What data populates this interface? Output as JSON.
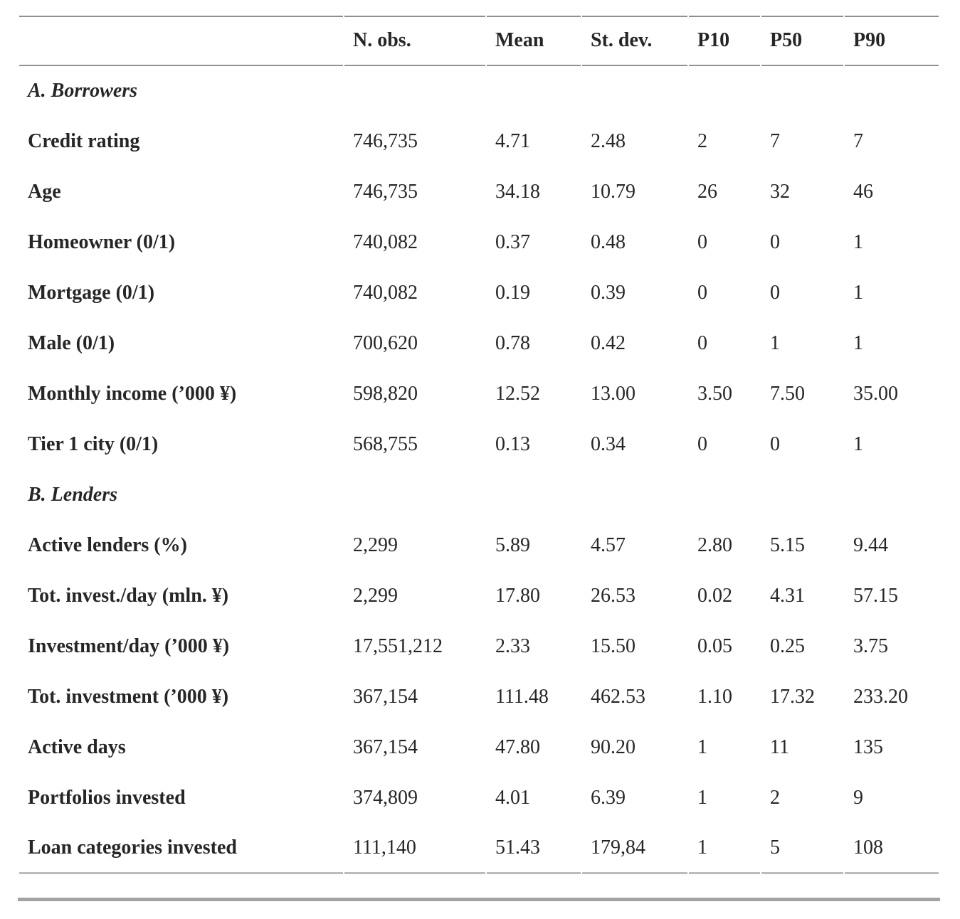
{
  "colors": {
    "text": "#262626",
    "rule_top": "#8f8f8f",
    "rule_header": "#929292",
    "rule_bottom_thin": "#bcbcbc",
    "rule_bottom_thick": "#a3a3a3"
  },
  "table": {
    "header": {
      "col_label": "",
      "cols": [
        "N. obs.",
        "Mean",
        "St. dev.",
        "P10",
        "P50",
        "P90"
      ]
    },
    "section_a": {
      "label": "A. Borrowers"
    },
    "rows_a": [
      {
        "label": "Credit rating",
        "values": [
          "746,735",
          "4.71",
          "2.48",
          "2",
          "7",
          "7"
        ]
      },
      {
        "label": "Age",
        "values": [
          "746,735",
          "34.18",
          "10.79",
          "26",
          "32",
          "46"
        ]
      },
      {
        "label": "Homeowner (0/1)",
        "values": [
          "740,082",
          "0.37",
          "0.48",
          "0",
          "0",
          "1"
        ]
      },
      {
        "label": "Mortgage (0/1)",
        "values": [
          "740,082",
          "0.19",
          "0.39",
          "0",
          "0",
          "1"
        ]
      },
      {
        "label": "Male (0/1)",
        "values": [
          "700,620",
          "0.78",
          "0.42",
          "0",
          "1",
          "1"
        ]
      },
      {
        "label": "Monthly income (’000 ¥)",
        "values": [
          "598,820",
          "12.52",
          "13.00",
          "3.50",
          "7.50",
          "35.00"
        ]
      },
      {
        "label": "Tier 1 city (0/1)",
        "values": [
          "568,755",
          "0.13",
          "0.34",
          "0",
          "0",
          "1"
        ]
      }
    ],
    "section_b": {
      "label": "B. Lenders"
    },
    "rows_b": [
      {
        "label": "Active lenders (%)",
        "values": [
          "2,299",
          "5.89",
          "4.57",
          "2.80",
          "5.15",
          "9.44"
        ]
      },
      {
        "label": "Tot. invest./day (mln. ¥)",
        "values": [
          "2,299",
          "17.80",
          "26.53",
          "0.02",
          "4.31",
          "57.15"
        ]
      },
      {
        "label": "Investment/day (’000 ¥)",
        "values": [
          "17,551,212",
          "2.33",
          "15.50",
          "0.05",
          "0.25",
          "3.75"
        ]
      },
      {
        "label": "Tot. investment (’000 ¥)",
        "values": [
          "367,154",
          "111.48",
          "462.53",
          "1.10",
          "17.32",
          "233.20"
        ]
      },
      {
        "label": "Active days",
        "values": [
          "367,154",
          "47.80",
          "90.20",
          "1",
          "11",
          "135"
        ]
      },
      {
        "label": "Portfolios invested",
        "values": [
          "374,809",
          "4.01",
          "6.39",
          "1",
          "2",
          "9"
        ]
      },
      {
        "label": "Loan categories invested",
        "values": [
          "111,140",
          "51.43",
          "179,84",
          "1",
          "5",
          "108"
        ]
      }
    ]
  }
}
